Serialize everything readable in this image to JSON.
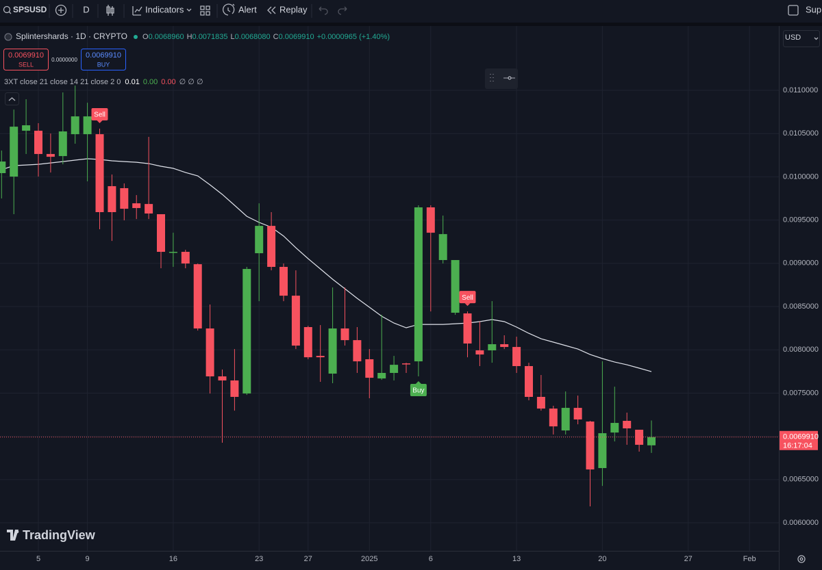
{
  "toolbar": {
    "symbol": "SPSUSD",
    "interval": "D",
    "indicators": "Indicators",
    "alert": "Alert",
    "replay": "Replay",
    "support": "Supp"
  },
  "legend": {
    "title": "Splintershards · 1D · CRYPTO",
    "ohlc": [
      {
        "key": "O",
        "value": "0.0068960"
      },
      {
        "key": "H",
        "value": "0.0071835"
      },
      {
        "key": "L",
        "value": "0.0068080"
      },
      {
        "key": "C",
        "value": "0.0069910"
      }
    ],
    "change": "+0.0000965 (+1.40%)"
  },
  "trade": {
    "sell_price": "0.0069910",
    "sell": "SELL",
    "spread": "0.0000000",
    "buy_price": "0.0069910",
    "buy": "BUY"
  },
  "indicator": {
    "name": "3XT close 21 close 14 21 close 2 0",
    "values": [
      "0.01",
      "0.00",
      "0.00",
      "∅ ∅ ∅"
    ]
  },
  "currency": "USD",
  "watermark": "TradingView",
  "chart_data": {
    "type": "candlestick",
    "categories": [
      null,
      null,
      null,
      "5",
      null,
      null,
      null,
      "9",
      null,
      null,
      null,
      null,
      null,
      null,
      "16",
      null,
      null,
      null,
      null,
      null,
      null,
      "23",
      null,
      null,
      null,
      "27",
      null,
      null,
      null,
      null,
      "2025",
      null,
      null,
      null,
      null,
      "6",
      null,
      null,
      null,
      null,
      null,
      null,
      "13",
      null,
      null,
      null,
      null,
      null,
      null,
      "20",
      null,
      null,
      null,
      null,
      null,
      null,
      "27",
      null,
      null,
      null,
      null,
      "Feb"
    ],
    "open": [
      0.010043,
      0.010003,
      0.010533,
      0.010533,
      0.010264,
      0.01024,
      0.010493,
      0.010493,
      0.010493,
      0.009892,
      0.009869,
      0.009694,
      0.009686,
      0.009568,
      0.009125,
      0.009133,
      0.00899,
      0.008247,
      0.007693,
      0.007646,
      0.007495,
      0.009117,
      0.009433,
      0.008959,
      0.008626,
      0.008263,
      0.00793,
      0.007725,
      0.008247,
      0.008112,
      0.007891,
      0.007669,
      0.007733,
      0.007843,
      0.007867,
      0.009647,
      0.009038,
      0.008429,
      0.008421,
      0.007994,
      0.007994,
      0.008065,
      0.008033,
      0.007812,
      0.007456,
      0.007321,
      0.007068,
      0.007329,
      0.007171,
      0.006633,
      0.007044,
      0.007179,
      0.007076,
      0.006896,
      null,
      null,
      null,
      null,
      null,
      null,
      null,
      null
    ],
    "high": [
      0.010304,
      0.010778,
      0.010897,
      0.01062,
      0.010501,
      0.010976,
      0.011055,
      0.010857,
      0.010557,
      0.010027,
      0.009924,
      0.009789,
      0.010462,
      0.009568,
      0.009354,
      0.009157,
      0.008998,
      0.008524,
      0.007772,
      0.008009,
      0.008959,
      0.009694,
      0.009592,
      0.008998,
      0.008919,
      0.008278,
      0.008286,
      0.008721,
      0.008721,
      0.008263,
      0.008009,
      0.008405,
      0.00793,
      0.007851,
      0.009671,
      0.009671,
      0.009552,
      0.009038,
      0.008444,
      0.008326,
      0.008563,
      0.008168,
      0.008152,
      0.007851,
      0.007709,
      0.007353,
      0.007519,
      0.007471,
      0.007179,
      0.007867,
      0.007574,
      0.007274,
      0.007076,
      0.0071835,
      null,
      null,
      null,
      null,
      null,
      null,
      null,
      null
    ],
    "low": [
      0.00975,
      0.009568,
      0.010264,
      0.010003,
      0.01005,
      0.010145,
      0.010383,
      0.009948,
      0.009394,
      0.009259,
      0.009497,
      0.009512,
      0.009512,
      0.008943,
      0.008959,
      0.008943,
      0.008223,
      0.007495,
      0.006926,
      0.007297,
      0.007479,
      0.008563,
      0.008919,
      0.008563,
      0.008009,
      0.007891,
      0.00763,
      0.007614,
      0.008049,
      0.007733,
      0.00744,
      0.007653,
      0.007646,
      0.007733,
      0.007693,
      0.008444,
      0.008998,
      0.008405,
      0.007914,
      0.007812,
      0.007851,
      0.008009,
      0.007733,
      0.007416,
      0.007297,
      0.007021,
      0.007021,
      0.007139,
      0.00619,
      0.006427,
      0.006941,
      0.006902,
      0.006823,
      0.006808,
      null,
      null,
      null,
      null,
      null,
      null,
      null,
      null
    ],
    "close": [
      0.010177,
      0.01058,
      0.010596,
      0.010264,
      0.010232,
      0.010525,
      0.010699,
      0.010699,
      0.009592,
      0.009592,
      0.009631,
      0.009639,
      0.009576,
      0.009133,
      0.009133,
      0.008998,
      0.008247,
      0.007693,
      0.007646,
      0.007456,
      0.008935,
      0.009433,
      0.008959,
      0.008626,
      0.008049,
      0.007914,
      0.007914,
      0.008247,
      0.008112,
      0.007867,
      0.007677,
      0.007733,
      0.007827,
      0.007835,
      0.009647,
      0.009354,
      0.009338,
      0.009038,
      0.008073,
      0.007946,
      0.008065,
      0.008033,
      0.007812,
      0.007456,
      0.007321,
      0.007115,
      0.007329,
      0.007195,
      0.006617,
      0.007036,
      0.007155,
      0.007092,
      0.006902,
      0.006991,
      null,
      null,
      null,
      null,
      null,
      null,
      null,
      null
    ],
    "up_color": "#4caf50",
    "down_color": "#f7525f",
    "ma": {
      "color": "#e0e3eb",
      "values": [
        0.010082,
        0.01013,
        0.010137,
        0.010145,
        0.010161,
        0.010177,
        0.010193,
        0.010209,
        0.010201,
        0.010185,
        0.010177,
        0.010169,
        0.010153,
        0.010122,
        0.010098,
        0.01005,
        0.010011,
        0.009908,
        0.009797,
        0.009671,
        0.009544,
        0.009473,
        0.009418,
        0.009315,
        0.00918,
        0.009054,
        0.008935,
        0.008816,
        0.008706,
        0.008595,
        0.008492,
        0.008389,
        0.00831,
        0.008255,
        0.008294,
        0.008294,
        0.008294,
        0.008302,
        0.00831,
        0.008326,
        0.00835,
        0.008326,
        0.008263,
        0.008191,
        0.008128,
        0.008089,
        0.008049,
        0.008009,
        0.007946,
        0.007899,
        0.007859,
        0.007827,
        0.007788,
        0.007748,
        null,
        null,
        null,
        null,
        null,
        null,
        null,
        null
      ]
    },
    "signals": [
      null,
      null,
      null,
      null,
      null,
      null,
      null,
      null,
      "Sell",
      null,
      null,
      null,
      null,
      null,
      null,
      null,
      null,
      null,
      null,
      null,
      null,
      null,
      null,
      null,
      null,
      null,
      null,
      null,
      null,
      null,
      null,
      null,
      null,
      null,
      "Buy",
      null,
      null,
      null,
      "Sell",
      null,
      null,
      null,
      null,
      null,
      null,
      null,
      null,
      null,
      null,
      null,
      null,
      null,
      null,
      null,
      null,
      null,
      null,
      null,
      null,
      null,
      null,
      null
    ],
    "ylim": [
      0.005676,
      0.011728
    ],
    "yticks": [
      {
        "value": 0.006,
        "label": "0.0060000"
      },
      {
        "value": 0.0065,
        "label": "0.0065000"
      },
      {
        "value": 0.007,
        "label": "0.0070000"
      },
      {
        "value": 0.0075,
        "label": "0.0075000"
      },
      {
        "value": 0.008,
        "label": "0.0080000"
      },
      {
        "value": 0.0085,
        "label": "0.0085000"
      },
      {
        "value": 0.009,
        "label": "0.0090000"
      },
      {
        "value": 0.0095,
        "label": "0.0095000"
      },
      {
        "value": 0.01,
        "label": "0.0100000"
      },
      {
        "value": 0.0105,
        "label": "0.0105000"
      },
      {
        "value": 0.011,
        "label": "0.0110000"
      }
    ],
    "grid": true,
    "last_price": {
      "value": 0.006991,
      "label": "0.0069910",
      "color": "#f7525f"
    },
    "countdown": "16:17:04"
  }
}
